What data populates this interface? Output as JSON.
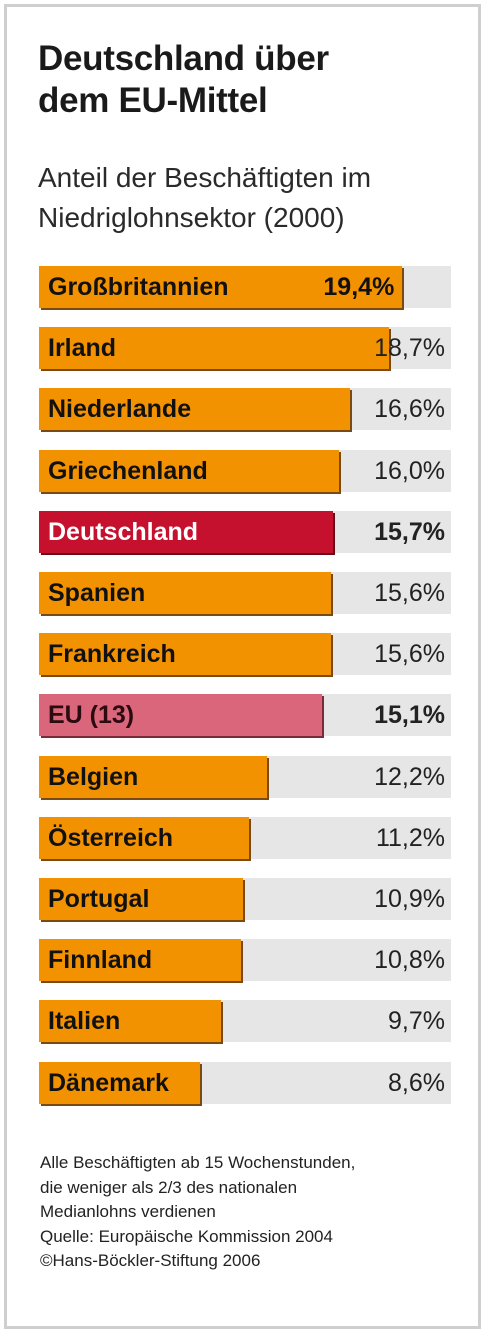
{
  "title_line1": "Deutschland über",
  "title_line2": "dem EU-Mittel",
  "subtitle_line1": "Anteil der Beschäftigten im",
  "subtitle_line2": "Niedriglohnsektor (2000)",
  "colors": {
    "bar": "#f39200",
    "highlight": "#c5102e",
    "eu": "#d9667a",
    "track": "#e6e6e6"
  },
  "chart_data": {
    "type": "bar",
    "orientation": "horizontal",
    "unit": "%",
    "xlim": [
      0,
      22
    ],
    "categories": [
      "Großbritannien",
      "Irland",
      "Niederlande",
      "Griechenland",
      "Deutschland",
      "Spanien",
      "Frankreich",
      "EU (13)",
      "Belgien",
      "Österreich",
      "Portugal",
      "Finnland",
      "Italien",
      "Dänemark"
    ],
    "values": [
      19.4,
      18.7,
      16.6,
      16.0,
      15.7,
      15.6,
      15.6,
      15.1,
      12.2,
      11.2,
      10.9,
      10.8,
      9.7,
      8.6
    ],
    "value_labels": [
      "19,4%",
      "18,7%",
      "16,6%",
      "16,0%",
      "15,7%",
      "15,6%",
      "15,6%",
      "15,1%",
      "12,2%",
      "11,2%",
      "10,9%",
      "10,8%",
      "9,7%",
      "8,6%"
    ],
    "highlight": "Deutschland",
    "average": "EU (13)"
  },
  "notes": [
    "Alle Beschäftigten ab 15 Wochenstunden,",
    "die weniger als 2/3 des nationalen",
    "Medianlohns verdienen",
    "Quelle: Europäische Kommission 2004",
    "©Hans-Böckler-Stiftung 2006"
  ]
}
